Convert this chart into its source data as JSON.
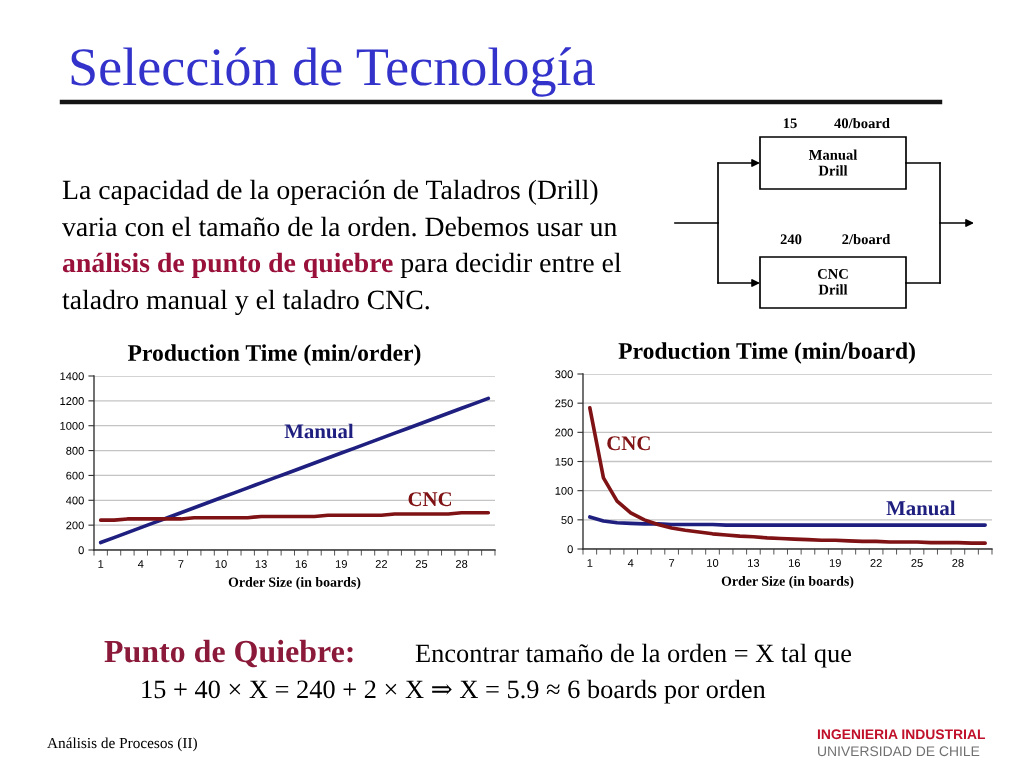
{
  "chart_data": [
    {
      "type": "other",
      "title": "Selección de Tecnología",
      "annotations": [
        "La capacidad de la operación de Taladros (Drill)",
        "varia con el tamaño de la orden. Debemos usar un",
        "análisis de punto de quiebre",
        "para decidir entre el",
        "taladro manual y el taladro CNC.",
        "15",
        "40/board",
        "Manual\nDrill",
        "240",
        "2/board",
        "CNC\nDrill"
      ]
    },
    {
      "type": "line",
      "title": "Production Time (min/order)",
      "xlabel": "Order Size (in boards)",
      "categories": [
        "1",
        null,
        null,
        "4",
        null,
        null,
        "7",
        null,
        null,
        "10",
        null,
        null,
        "13",
        null,
        null,
        "16",
        null,
        null,
        "19",
        null,
        null,
        "22",
        null,
        null,
        "25",
        null,
        null,
        "28",
        null,
        null
      ],
      "series": [
        {
          "name": "Manual",
          "color": "#1f1f80",
          "values": [
            60,
            100,
            140,
            180,
            220,
            260,
            300,
            340,
            380,
            420,
            460,
            500,
            540,
            580,
            620,
            660,
            700,
            740,
            780,
            820,
            860,
            900,
            940,
            980,
            1020,
            1060,
            1100,
            1140,
            1180,
            1220
          ]
        },
        {
          "name": "CNC",
          "color": "#7f1214",
          "values": [
            240,
            240,
            250,
            250,
            250,
            250,
            250,
            260,
            260,
            260,
            260,
            260,
            270,
            270,
            270,
            270,
            270,
            280,
            280,
            280,
            280,
            280,
            290,
            290,
            290,
            290,
            290,
            300,
            300,
            300
          ]
        }
      ],
      "ylim": [
        0,
        1400
      ],
      "yticks": [
        0,
        200,
        400,
        600,
        800,
        1000,
        1200,
        1400
      ],
      "grid": "y",
      "line_style": "solid"
    },
    {
      "type": "line",
      "title": "Production Time (min/board)",
      "xlabel": "Order Size (in boards)",
      "categories": [
        "1",
        null,
        null,
        "4",
        null,
        null,
        "7",
        null,
        null,
        "10",
        null,
        null,
        "13",
        null,
        null,
        "16",
        null,
        null,
        "19",
        null,
        null,
        "22",
        null,
        null,
        "25",
        null,
        null,
        "28",
        null,
        null
      ],
      "series": [
        {
          "name": "Manual",
          "color": "#1f1f80",
          "values": [
            55,
            48,
            45,
            44,
            43,
            43,
            42,
            42,
            42,
            42,
            41,
            41,
            41,
            41,
            41,
            41,
            41,
            41,
            41,
            41,
            41,
            41,
            41,
            41,
            41,
            41,
            41,
            41,
            41,
            41
          ]
        },
        {
          "name": "CNC",
          "color": "#7f1214",
          "values": [
            242,
            122,
            82,
            62,
            50,
            42,
            36,
            32,
            29,
            26,
            24,
            22,
            21,
            19,
            18,
            17,
            16,
            15,
            15,
            14,
            13,
            13,
            12,
            12,
            12,
            11,
            11,
            11,
            10,
            10
          ]
        }
      ],
      "ylim": [
        0,
        300
      ],
      "yticks": [
        0,
        50,
        100,
        150,
        200,
        250,
        300
      ],
      "grid": "y",
      "line_style": "solid"
    },
    {
      "type": "other",
      "annotations": [
        "Punto de Quiebre:",
        "Encontrar tamaño de la orden = X tal que",
        "15 + 40 × X = 240 + 2 × X ⇒ X = 5.9 ≈ 6 boards por orden",
        "Análisis de Procesos (II)",
        "INGENIERIA INDUSTRIAL",
        "UNIVERSIDAD DE CHILE"
      ]
    }
  ]
}
